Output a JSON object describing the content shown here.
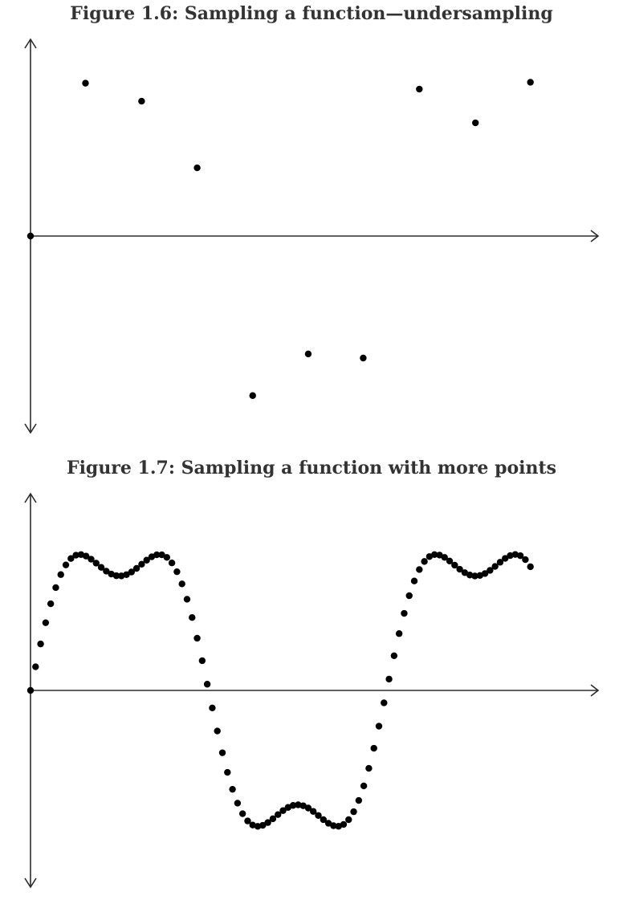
{
  "chart_data": [
    {
      "type": "scatter",
      "title": "Figure 1.6: Sampling a function—undersampling",
      "xlabel": "",
      "ylabel": "",
      "xlim": [
        0,
        1
      ],
      "ylim": [
        -1.25,
        1.25
      ],
      "grid": false,
      "legend": "none",
      "points": [
        [
          0.0,
          0.0
        ],
        [
          0.097,
          1.002
        ],
        [
          0.196,
          0.884
        ],
        [
          0.294,
          0.447
        ],
        [
          0.392,
          -1.046
        ],
        [
          0.49,
          -0.773
        ],
        [
          0.587,
          -0.8
        ],
        [
          0.686,
          0.963
        ],
        [
          0.785,
          0.742
        ],
        [
          0.882,
          1.008
        ]
      ]
    },
    {
      "type": "scatter",
      "title": "Figure 1.7: Sampling a function with more points",
      "xlabel": "",
      "ylabel": "",
      "xlim": [
        0,
        1
      ],
      "ylim": [
        -1.25,
        1.25
      ],
      "grid": false,
      "legend": "none",
      "n_points": 100,
      "period": 0.6283,
      "signal": "y = sin(2*pi*x/period) + 0.25*sin(3*2*pi*x/period)"
    }
  ]
}
